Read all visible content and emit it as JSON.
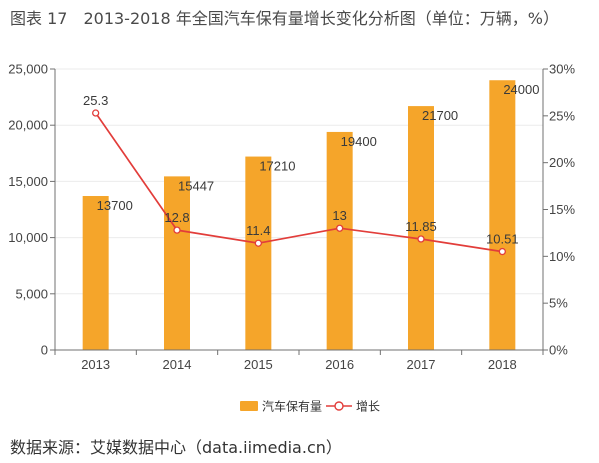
{
  "source": "数据来源：艾媒数据中心（data.iimedia.cn）",
  "colors": {
    "axis_line": "#707070",
    "grid": "#ebebeb",
    "axis_text": "#444444",
    "label_text": "#3a3a3a"
  },
  "chart_data": {
    "type": "bar",
    "figure_label": "图表 17",
    "title": "2013-2018 年全国汽车保有量增长变化分析图（单位：万辆，%）",
    "categories": [
      "2013",
      "2014",
      "2015",
      "2016",
      "2017",
      "2018"
    ],
    "y_left": {
      "range": [
        0,
        25000
      ],
      "ticks": [
        "0",
        "5,000",
        "10,000",
        "15,000",
        "20,000",
        "25,000"
      ]
    },
    "y_right": {
      "range": [
        0,
        30
      ],
      "ticks": [
        "0%",
        "5%",
        "10%",
        "15%",
        "20%",
        "25%",
        "30%"
      ]
    },
    "series": [
      {
        "name": "汽车保有量",
        "type": "bar",
        "axis": "left",
        "color": "#F5A52A",
        "values": [
          13700,
          15447,
          17210,
          19400,
          21700,
          24000
        ]
      },
      {
        "name": "增长",
        "type": "line",
        "axis": "right",
        "color": "#E23D3A",
        "values": [
          25.3,
          12.8,
          11.4,
          13,
          11.85,
          10.51
        ]
      }
    ],
    "grid": true,
    "legend": "bottom"
  }
}
